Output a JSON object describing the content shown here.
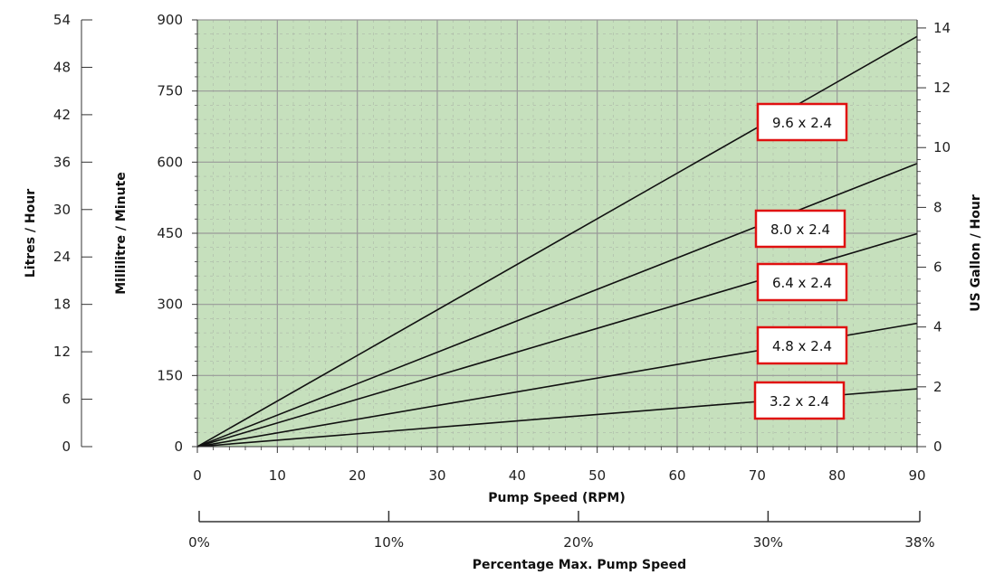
{
  "chart_data": {
    "type": "line",
    "xlabel": "Pump Speed (RPM)",
    "x_ticks": [
      0,
      10,
      20,
      30,
      40,
      50,
      60,
      70,
      80,
      90
    ],
    "xlim": [
      0,
      90
    ],
    "ylabel": "Millilitre / Minute",
    "ylim": [
      0,
      900
    ],
    "y_ticks": [
      0,
      150,
      300,
      450,
      600,
      750,
      900
    ],
    "y_left_outer": {
      "label": "Litres / Hour",
      "range": [
        0,
        54
      ],
      "ticks": [
        0,
        6,
        12,
        18,
        24,
        30,
        36,
        42,
        48,
        54
      ]
    },
    "y_right": {
      "label": "US Gallon / Hour",
      "range": [
        0,
        14.27
      ],
      "ticks": [
        0,
        2,
        4,
        6,
        8,
        10,
        12,
        14
      ]
    },
    "x_secondary": {
      "label": "Percentage Max. Pump Speed",
      "ticks": [
        {
          "label": "0%",
          "rpm": 0
        },
        {
          "label": "10%",
          "rpm": 23.68
        },
        {
          "label": "20%",
          "rpm": 47.37
        },
        {
          "label": "30%",
          "rpm": 71.05
        },
        {
          "label": "38%",
          "rpm": 90
        }
      ]
    },
    "grid": true,
    "background_color": "#c6e0bd",
    "grid_color": "#999999",
    "label_border_color": "#e01010",
    "series": [
      {
        "name": "9.6 x 2.4",
        "x": [
          0,
          90
        ],
        "values": [
          0,
          865
        ]
      },
      {
        "name": "8.0 x 2.4",
        "x": [
          0,
          90
        ],
        "values": [
          0,
          597
        ]
      },
      {
        "name": "6.4 x 2.4",
        "x": [
          0,
          90
        ],
        "values": [
          0,
          449
        ]
      },
      {
        "name": "4.8 x 2.4",
        "x": [
          0,
          90
        ],
        "values": [
          0,
          260
        ]
      },
      {
        "name": "3.2 x 2.4",
        "x": [
          0,
          90
        ],
        "values": [
          0,
          122
        ]
      }
    ]
  }
}
